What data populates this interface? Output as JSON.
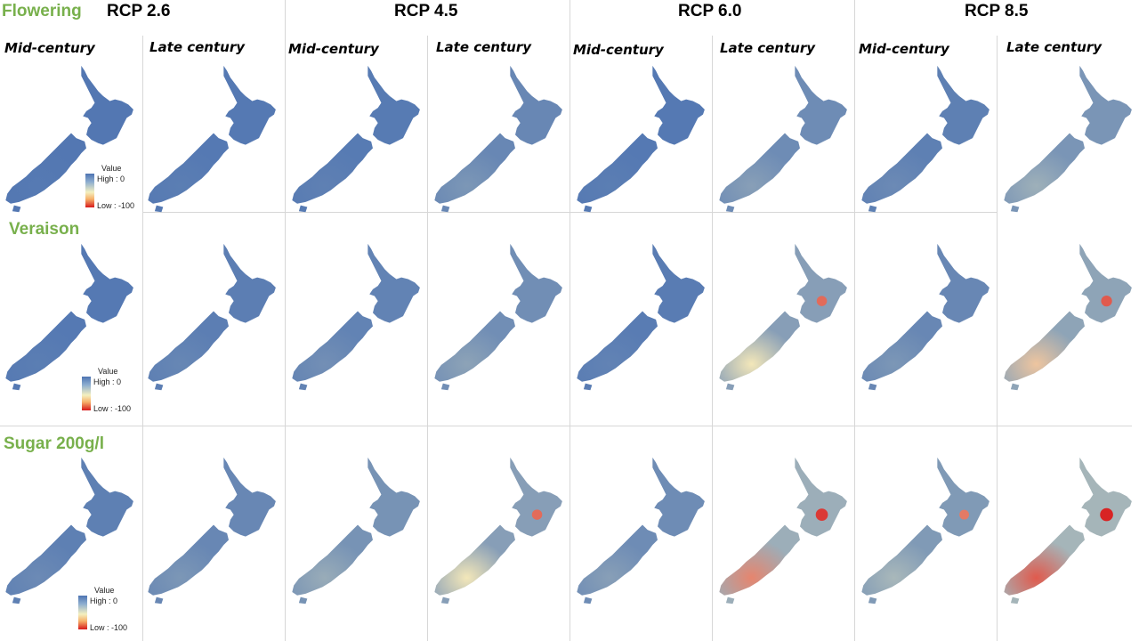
{
  "columns": {
    "scenarios": [
      "RCP 2.6",
      "RCP 4.5",
      "RCP 6.0",
      "RCP 8.5"
    ],
    "periods": [
      "Mid-century",
      "Late century",
      "Mid-century",
      "Late century",
      "Mid-century",
      "Late century",
      "Mid-century",
      "Late century"
    ]
  },
  "rows": [
    {
      "title": "Flowering",
      "warming": [
        0.05,
        0.08,
        0.1,
        0.28,
        0.08,
        0.35,
        0.18,
        0.48
      ]
    },
    {
      "title": "Veraison",
      "warming": [
        0.08,
        0.15,
        0.22,
        0.38,
        0.12,
        0.62,
        0.28,
        0.7
      ]
    },
    {
      "title": "Sugar 200g/l",
      "warming": [
        0.18,
        0.28,
        0.45,
        0.62,
        0.35,
        0.85,
        0.55,
        0.95
      ]
    }
  ],
  "legend": {
    "title": "Value",
    "high": "High : 0",
    "low": "Low : -100"
  },
  "colors": {
    "high": "#4e74b2",
    "mid": "#f4f0c0",
    "low": "#d7191c",
    "row_title": "#78b04c"
  }
}
